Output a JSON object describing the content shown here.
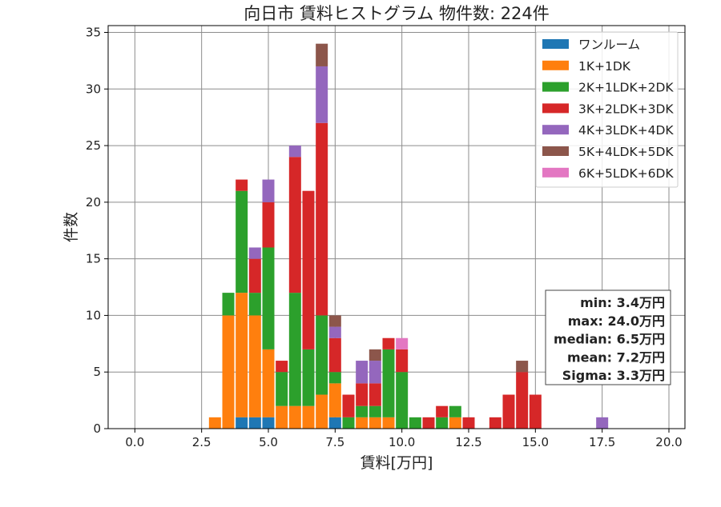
{
  "chart_data": {
    "type": "bar",
    "stacked": true,
    "title": "向日市 賃料ヒストグラム  物件数: 224件",
    "xlabel": "賃料[万円]",
    "ylabel": "件数",
    "xlim": [
      -1.0,
      20.6
    ],
    "ylim": [
      0,
      35.6
    ],
    "xticks": [
      "0.0",
      "2.5",
      "5.0",
      "7.5",
      "10.0",
      "12.5",
      "15.0",
      "17.5",
      "20.0"
    ],
    "yticks": [
      "0",
      "5",
      "10",
      "15",
      "20",
      "25",
      "30",
      "35"
    ],
    "grid": true,
    "legend_position": "top-right",
    "bin_width": 0.5,
    "x": [
      3.0,
      3.5,
      4.0,
      4.5,
      5.0,
      5.5,
      6.0,
      6.5,
      7.0,
      7.5,
      8.0,
      8.5,
      9.0,
      9.5,
      10.0,
      10.5,
      11.0,
      11.5,
      12.0,
      12.5,
      13.0,
      13.5,
      14.0,
      14.5,
      15.0,
      15.5,
      16.0,
      16.5,
      17.0,
      17.5
    ],
    "series": [
      {
        "name": "ワンルーム",
        "color": "#1f77b4",
        "values": [
          0,
          0,
          1,
          1,
          1,
          0,
          0,
          0,
          0,
          1,
          0,
          0,
          0,
          0,
          0,
          0,
          0,
          0,
          0,
          0,
          0,
          0,
          0,
          0,
          0,
          0,
          0,
          0,
          0,
          0
        ]
      },
      {
        "name": "1K+1DK",
        "color": "#ff7f0e",
        "values": [
          1,
          10,
          11,
          9,
          6,
          2,
          2,
          2,
          3,
          3,
          0,
          1,
          1,
          1,
          0,
          0,
          0,
          0,
          1,
          0,
          0,
          0,
          0,
          0,
          0,
          0,
          0,
          0,
          0,
          0
        ]
      },
      {
        "name": "2K+1LDK+2DK",
        "color": "#2ca02c",
        "values": [
          0,
          2,
          9,
          2,
          9,
          3,
          10,
          5,
          7,
          1,
          1,
          1,
          1,
          6,
          5,
          1,
          0,
          1,
          1,
          0,
          0,
          0,
          0,
          0,
          0,
          0,
          0,
          0,
          0,
          0
        ]
      },
      {
        "name": "3K+2LDK+3DK",
        "color": "#d62728",
        "values": [
          0,
          0,
          1,
          3,
          4,
          1,
          12,
          14,
          17,
          3,
          2,
          2,
          2,
          1,
          2,
          0,
          1,
          1,
          0,
          1,
          0,
          1,
          3,
          5,
          3,
          0,
          0,
          0,
          0,
          0
        ]
      },
      {
        "name": "4K+3LDK+4DK",
        "color": "#9467bd",
        "values": [
          0,
          0,
          0,
          1,
          2,
          0,
          1,
          0,
          5,
          1,
          0,
          2,
          2,
          0,
          0,
          0,
          0,
          0,
          0,
          0,
          0,
          0,
          0,
          0,
          0,
          0,
          0,
          0,
          0,
          1
        ]
      },
      {
        "name": "5K+4LDK+5DK",
        "color": "#8c564b",
        "values": [
          0,
          0,
          0,
          0,
          0,
          0,
          0,
          0,
          2,
          1,
          0,
          0,
          1,
          0,
          0,
          0,
          0,
          0,
          0,
          0,
          0,
          0,
          0,
          1,
          0,
          0,
          0,
          0,
          0,
          0
        ]
      },
      {
        "name": "6K+5LDK+6DK",
        "color": "#e377c2",
        "values": [
          0,
          0,
          0,
          0,
          0,
          0,
          0,
          0,
          0,
          0,
          0,
          0,
          0,
          0,
          1,
          0,
          0,
          0,
          0,
          0,
          0,
          0,
          0,
          0,
          0,
          0,
          0,
          0,
          0,
          0
        ]
      }
    ],
    "stats": [
      "min: 3.4万円",
      "max: 24.0万円",
      "median: 6.5万円",
      "mean: 7.2万円",
      "Sigma: 3.3万円"
    ]
  }
}
